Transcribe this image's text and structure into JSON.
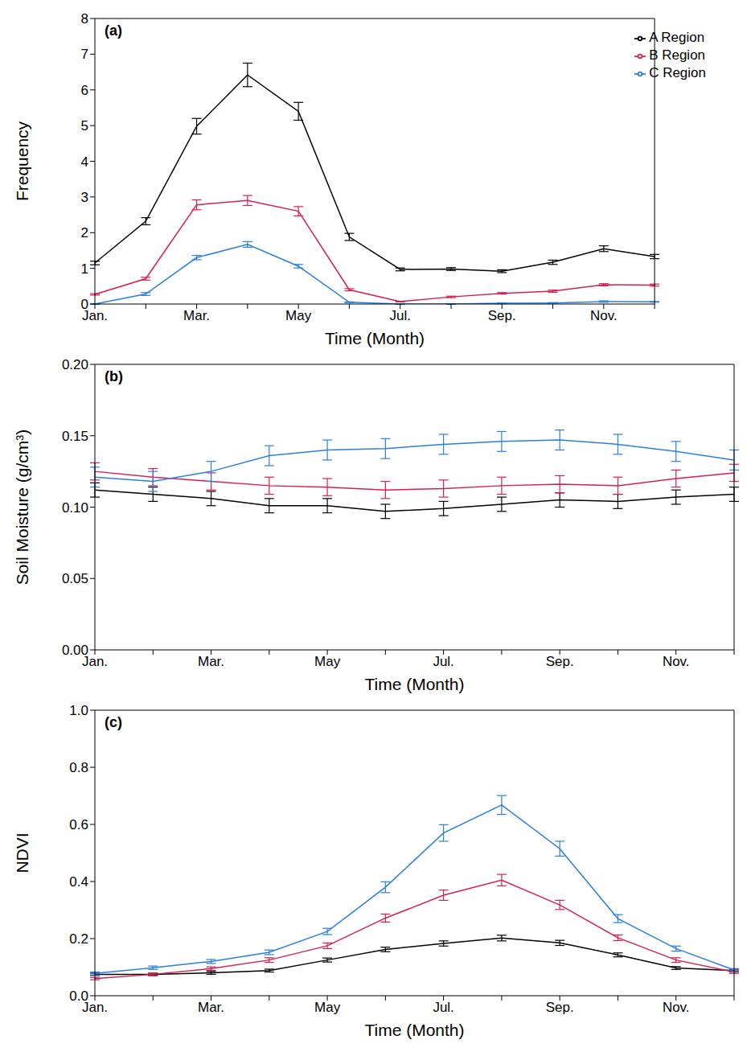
{
  "chart_data": [
    {
      "type": "line",
      "title": "(a)",
      "x_label": "Time (Month)",
      "y_label": "Frequency",
      "categories": [
        "Jan.",
        null,
        "Mar.",
        null,
        "May",
        null,
        "Jul.",
        null,
        "Sep.",
        null,
        "Nov.",
        null
      ],
      "ylim": [
        0,
        8
      ],
      "yticks": [
        0,
        1,
        2,
        3,
        4,
        5,
        6,
        7,
        8
      ],
      "legend": "upper right",
      "series": [
        {
          "name": "A Region",
          "color": "#000000",
          "values": [
            1.15,
            2.32,
            4.98,
            6.42,
            5.4,
            1.88,
            0.97,
            0.98,
            0.92,
            1.17,
            1.55,
            1.33
          ],
          "errors": [
            0.05,
            0.1,
            0.22,
            0.33,
            0.25,
            0.1,
            0.04,
            0.04,
            0.04,
            0.06,
            0.08,
            0.06
          ]
        },
        {
          "name": "B Region",
          "color": "#d62050",
          "values": [
            0.27,
            0.71,
            2.78,
            2.9,
            2.6,
            0.4,
            0.07,
            0.2,
            0.3,
            0.36,
            0.54,
            0.53
          ],
          "errors": [
            0.02,
            0.04,
            0.14,
            0.14,
            0.13,
            0.03,
            0.01,
            0.02,
            0.02,
            0.03,
            0.03,
            0.03
          ]
        },
        {
          "name": "C Region",
          "color": "#2a7fe0",
          "values": [
            0.0,
            0.28,
            1.3,
            1.67,
            1.06,
            0.05,
            0.0,
            0.0,
            0.02,
            0.03,
            0.07,
            0.06
          ],
          "errors": [
            0.01,
            0.04,
            0.06,
            0.08,
            0.05,
            0.01,
            0.01,
            0.01,
            0.01,
            0.01,
            0.02,
            0.01
          ]
        }
      ]
    },
    {
      "type": "line",
      "title": "(b)",
      "x_label": "Time (Month)",
      "y_label": "Soil Moisture (g/cm³)",
      "categories": [
        "Jan.",
        null,
        "Mar.",
        null,
        "May",
        null,
        "Jul.",
        null,
        "Sep.",
        null,
        "Nov.",
        null
      ],
      "ylim": [
        0,
        0.2
      ],
      "yticks": [
        {
          "value": 0,
          "label": "0.00"
        },
        {
          "value": 0.05,
          "label": "0.05"
        },
        {
          "value": 0.1,
          "label": "0.10"
        },
        {
          "value": 0.15,
          "label": "0.15"
        },
        {
          "value": 0.2,
          "label": "0.20"
        }
      ],
      "series": [
        {
          "name": "A Region",
          "color": "#000000",
          "values": [
            0.112,
            0.109,
            0.106,
            0.101,
            0.101,
            0.097,
            0.099,
            0.102,
            0.105,
            0.104,
            0.107,
            0.109
          ],
          "errors": [
            0.005,
            0.005,
            0.005,
            0.005,
            0.005,
            0.005,
            0.005,
            0.005,
            0.005,
            0.005,
            0.005,
            0.005
          ]
        },
        {
          "name": "B Region",
          "color": "#d62050",
          "values": [
            0.125,
            0.121,
            0.118,
            0.115,
            0.114,
            0.112,
            0.113,
            0.115,
            0.116,
            0.115,
            0.12,
            0.124
          ],
          "errors": [
            0.006,
            0.006,
            0.006,
            0.006,
            0.006,
            0.006,
            0.006,
            0.006,
            0.006,
            0.006,
            0.006,
            0.006
          ]
        },
        {
          "name": "C Region",
          "color": "#2a7fe0",
          "values": [
            0.121,
            0.118,
            0.125,
            0.136,
            0.14,
            0.141,
            0.144,
            0.146,
            0.147,
            0.144,
            0.139,
            0.133
          ],
          "errors": [
            0.007,
            0.007,
            0.007,
            0.007,
            0.007,
            0.007,
            0.007,
            0.007,
            0.007,
            0.007,
            0.007,
            0.007
          ]
        }
      ]
    },
    {
      "type": "line",
      "title": "(c)",
      "x_label": "Time (Month)",
      "y_label": "NDVI",
      "categories": [
        "Jan.",
        null,
        "Mar.",
        null,
        "May",
        null,
        "Jul.",
        null,
        "Sep.",
        null,
        "Nov.",
        null
      ],
      "ylim": [
        0,
        1
      ],
      "yticks": [
        {
          "value": 0,
          "label": "0.0"
        },
        {
          "value": 0.2,
          "label": "0.2"
        },
        {
          "value": 0.4,
          "label": "0.4"
        },
        {
          "value": 0.6,
          "label": "0.6"
        },
        {
          "value": 0.8,
          "label": "0.8"
        },
        {
          "value": 1,
          "label": "1.0"
        }
      ],
      "series": [
        {
          "name": "A Region",
          "color": "#000000",
          "values": [
            0.075,
            0.075,
            0.08,
            0.088,
            0.125,
            0.162,
            0.183,
            0.202,
            0.185,
            0.143,
            0.097,
            0.088
          ],
          "errors": [
            0.004,
            0.004,
            0.005,
            0.005,
            0.007,
            0.008,
            0.009,
            0.01,
            0.009,
            0.007,
            0.005,
            0.005
          ]
        },
        {
          "name": "B Region",
          "color": "#d62050",
          "values": [
            0.06,
            0.075,
            0.095,
            0.125,
            0.175,
            0.272,
            0.352,
            0.405,
            0.318,
            0.203,
            0.125,
            0.083
          ],
          "errors": [
            0.004,
            0.005,
            0.006,
            0.008,
            0.01,
            0.014,
            0.018,
            0.02,
            0.016,
            0.01,
            0.008,
            0.005
          ]
        },
        {
          "name": "C Region",
          "color": "#2a7fe0",
          "values": [
            0.078,
            0.098,
            0.12,
            0.152,
            0.225,
            0.38,
            0.57,
            0.668,
            0.515,
            0.27,
            0.165,
            0.09
          ],
          "errors": [
            0.005,
            0.006,
            0.007,
            0.008,
            0.011,
            0.019,
            0.029,
            0.033,
            0.026,
            0.014,
            0.009,
            0.005
          ]
        }
      ]
    }
  ]
}
